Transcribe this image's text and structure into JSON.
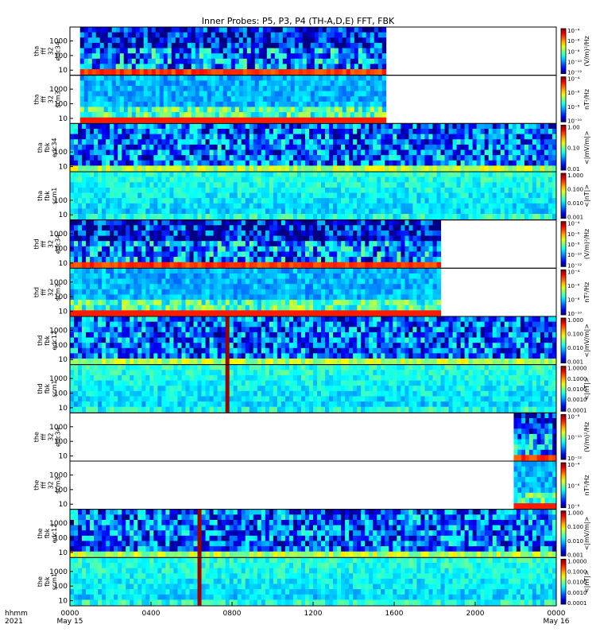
{
  "title": "Inner Probes: P5, P3, P4 (TH-A,D,E) FFT, FBK",
  "time_axis": {
    "corner_label": [
      "hhmm",
      "2021"
    ],
    "ticks": [
      {
        "hour": 0,
        "label": "0000",
        "sub": "May 15"
      },
      {
        "hour": 4,
        "label": "0400",
        "sub": ""
      },
      {
        "hour": 8,
        "label": "0800",
        "sub": ""
      },
      {
        "hour": 12,
        "label": "1200",
        "sub": ""
      },
      {
        "hour": 16,
        "label": "1600",
        "sub": ""
      },
      {
        "hour": 20,
        "label": "2000",
        "sub": ""
      },
      {
        "hour": 24,
        "label": "0000",
        "sub": "May 16"
      }
    ]
  },
  "chart_data": {
    "type": "heatmap",
    "title": "Inner Probes: P5, P3, P4 (TH-A,D,E) FFT, FBK",
    "x_range_hours": [
      0,
      24
    ],
    "y_ticks": [
      "10",
      "100",
      "1000"
    ],
    "panels": [
      {
        "label": [
          "tha",
          "fff",
          "32",
          "edc34"
        ],
        "y_ticks": [
          "10",
          "100",
          "1000"
        ],
        "data_hours": [
          0.5,
          15.6
        ],
        "colorbar_ticks": [
          "10⁻⁴",
          "10⁻⁶",
          "10⁻⁸",
          "10⁻¹⁰",
          "10⁻¹²"
        ],
        "colorbar_label": "(V/m)²/Hz",
        "style": "efield_spec"
      },
      {
        "label": [
          "tha",
          "fff",
          "32",
          "scm3"
        ],
        "y_ticks": [
          "10",
          "100",
          "1000"
        ],
        "data_hours": [
          0.5,
          15.6
        ],
        "colorbar_ticks": [
          "10⁻⁴",
          "10⁻⁶",
          "10⁻⁸",
          "10⁻¹⁰"
        ],
        "colorbar_label": "nT²/Hz",
        "style": "bfield_spec"
      },
      {
        "label": [
          "tha",
          "fbk",
          "edc34"
        ],
        "y_ticks": [
          "10",
          "100"
        ],
        "data_hours": [
          0,
          24
        ],
        "colorbar_ticks": [
          "1.00",
          "0.10",
          "0.01"
        ],
        "colorbar_label": "<|mV/m|>",
        "style": "fbk_e"
      },
      {
        "label": [
          "tha",
          "fbk",
          "scm1"
        ],
        "y_ticks": [
          "10",
          "100"
        ],
        "data_hours": [
          0,
          24
        ],
        "colorbar_ticks": [
          "1.000",
          "0.100",
          "0.010",
          "0.001"
        ],
        "colorbar_label": "<|nT|>",
        "style": "fbk_b"
      },
      {
        "label": [
          "thd",
          "fff",
          "32",
          "edc34"
        ],
        "y_ticks": [
          "10",
          "100",
          "1000"
        ],
        "data_hours": [
          0,
          18.3
        ],
        "colorbar_ticks": [
          "10⁻⁴",
          "10⁻⁶",
          "10⁻⁸",
          "10⁻¹⁰",
          "10⁻¹²"
        ],
        "colorbar_label": "(V/m)²/Hz",
        "style": "efield_spec"
      },
      {
        "label": [
          "thd",
          "fff",
          "32",
          "scm3"
        ],
        "y_ticks": [
          "10",
          "100",
          "1000"
        ],
        "data_hours": [
          0,
          18.3
        ],
        "colorbar_ticks": [
          "10⁻⁴",
          "10⁻⁶",
          "10⁻⁸",
          "10⁻¹⁰"
        ],
        "colorbar_label": "nT²/Hz",
        "style": "bfield_spec"
      },
      {
        "label": [
          "thd",
          "fbk",
          "edc12"
        ],
        "y_ticks": [
          "10",
          "100",
          "1000"
        ],
        "data_hours": [
          0,
          24
        ],
        "colorbar_ticks": [
          "1.000",
          "0.100",
          "0.010",
          "0.001"
        ],
        "colorbar_label": "<|mV/m|>",
        "style": "fbk_e",
        "spike_hour": 7.7
      },
      {
        "label": [
          "thd",
          "fbk",
          "scm1"
        ],
        "y_ticks": [
          "10",
          "100",
          "1000"
        ],
        "data_hours": [
          0,
          24
        ],
        "colorbar_ticks": [
          "1.0000",
          "0.1000",
          "0.0100",
          "0.0010",
          "0.0001"
        ],
        "colorbar_label": "<|nT|>",
        "style": "fbk_b",
        "spike_hour": 7.7
      },
      {
        "label": [
          "the",
          "fff",
          "32",
          "edc34"
        ],
        "y_ticks": [
          "10",
          "100",
          "1000"
        ],
        "data_hours": [
          21.9,
          24
        ],
        "colorbar_ticks": [
          "10⁻⁸",
          "10⁻¹⁰",
          "10⁻¹²"
        ],
        "colorbar_label": "(V/m)²/Hz",
        "style": "efield_spec"
      },
      {
        "label": [
          "the",
          "fff",
          "32",
          "scm3"
        ],
        "y_ticks": [
          "10",
          "100",
          "1000"
        ],
        "data_hours": [
          21.9,
          24
        ],
        "colorbar_ticks": [
          "10⁻⁴",
          "10⁻⁶",
          "10⁻⁸"
        ],
        "colorbar_label": "nT²/Hz",
        "style": "bfield_spec"
      },
      {
        "label": [
          "the",
          "fbk",
          "edc12"
        ],
        "y_ticks": [
          "10",
          "100",
          "1000"
        ],
        "data_hours": [
          0,
          24
        ],
        "colorbar_ticks": [
          "1.000",
          "0.100",
          "0.010",
          "0.001"
        ],
        "colorbar_label": "<|mV/m|>",
        "style": "fbk_e",
        "spike_hour": 6.4
      },
      {
        "label": [
          "the",
          "fbk",
          "scm1"
        ],
        "y_ticks": [
          "10",
          "100",
          "1000"
        ],
        "data_hours": [
          0,
          24
        ],
        "colorbar_ticks": [
          "1.0000",
          "0.1000",
          "0.0100",
          "0.0010",
          "0.0001"
        ],
        "colorbar_label": "<|nT|>",
        "style": "fbk_b",
        "spike_hour": 6.4
      }
    ]
  }
}
